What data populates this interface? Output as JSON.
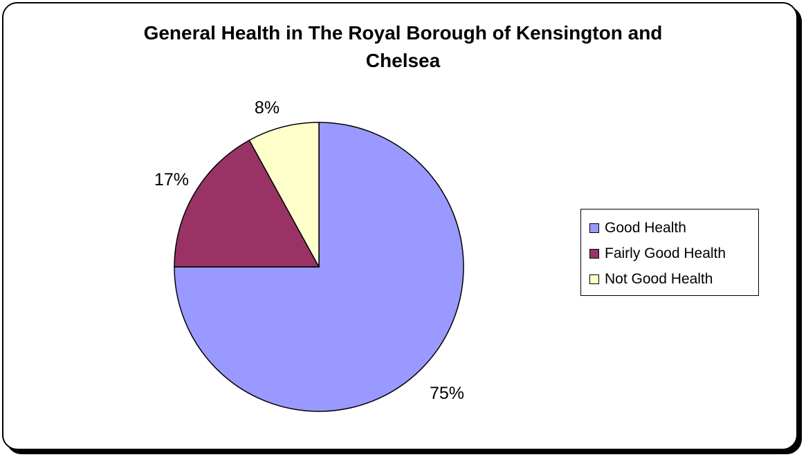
{
  "chart_data": {
    "type": "pie",
    "title_lines": [
      "General Health in The Royal Borough of Kensington and",
      "Chelsea"
    ],
    "slices": [
      {
        "label": "Good Health",
        "value": 75,
        "value_label": "75%",
        "color": "#9999ff"
      },
      {
        "label": "Fairly Good Health",
        "value": 17,
        "value_label": "17%",
        "color": "#993366"
      },
      {
        "label": "Not Good Health",
        "value": 8,
        "value_label": "8%",
        "color": "#ffffcc"
      }
    ],
    "legend_placement": "right",
    "start_angle": "12 o'clock",
    "direction": "clockwise"
  }
}
